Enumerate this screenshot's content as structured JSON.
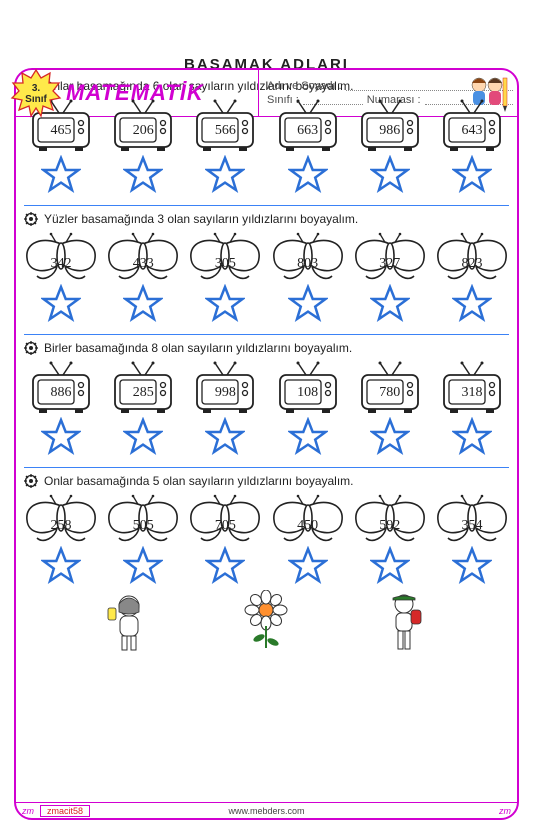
{
  "grade": {
    "num": "3.",
    "label": "Sınıf"
  },
  "title": "MATEMATİK",
  "title_color": "#d100d1",
  "header": {
    "name_label": "Adı ve Soyadı :",
    "class_label": "Sınıfı :",
    "number_label": "Numarası :"
  },
  "page_title": "BASAMAK  ADLARI",
  "sections": [
    {
      "instruction": "Onlar basamağında 6 olan sayıların  yıldızlarını boyayalım.",
      "shape": "tv",
      "values": [
        "465",
        "206",
        "566",
        "663",
        "986",
        "643"
      ]
    },
    {
      "instruction": "Yüzler basamağında 3 olan sayıların  yıldızlarını boyayalım.",
      "shape": "butterfly",
      "values": [
        "342",
        "433",
        "305",
        "803",
        "327",
        "823"
      ]
    },
    {
      "instruction": "Birler basamağında 8 olan sayıların  yıldızlarını boyayalım.",
      "shape": "tv",
      "values": [
        "886",
        "285",
        "998",
        "108",
        "780",
        "318"
      ]
    },
    {
      "instruction": "Onlar basamağında 5 olan sayıların  yıldızlarını boyayalım.",
      "shape": "butterfly",
      "values": [
        "258",
        "505",
        "705",
        "450",
        "592",
        "354"
      ]
    }
  ],
  "star_color": "#2b6fd6",
  "author": "zmacit58",
  "website": "www.mebders.com",
  "signature": "zm",
  "colors": {
    "border": "#d100d1",
    "badge_fill": "#ffe94a",
    "badge_stroke": "#d62828",
    "divider_blue": "#3b82f6"
  }
}
